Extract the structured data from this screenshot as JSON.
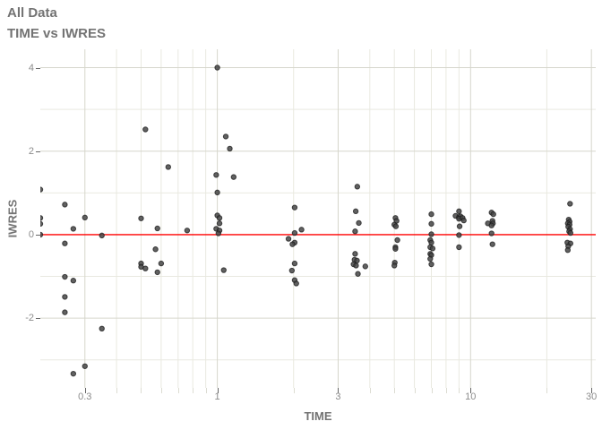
{
  "title": "All Data",
  "subtitle": "TIME vs IWRES",
  "colors": {
    "reference_line": "#FF0000",
    "point_fill": "#454545",
    "point_stroke": "#1a1a1a",
    "grid_major": "#d6d6cc",
    "grid_minor": "#e9e9e0",
    "axis_text": "#8c8c8c",
    "title_text": "#737373",
    "tick_major": "#666666",
    "tick_minor": "#dcdcd2"
  },
  "chart_data": {
    "type": "scatter",
    "title": "All Data",
    "subtitle": "TIME vs IWRES",
    "xlabel": "TIME",
    "ylabel": "IWRES",
    "x_scale": "log10",
    "grid": true,
    "legend": false,
    "xlim": [
      0.2,
      31.2
    ],
    "ylim": [
      -3.67,
      4.44
    ],
    "x_ticks": [
      0.3,
      1,
      3,
      10,
      30
    ],
    "x_tick_labels": [
      "0.3",
      "1",
      "3",
      "10",
      "30"
    ],
    "x_minor_ticks": [
      0.4,
      0.5,
      0.6,
      0.7,
      0.8,
      0.9,
      2,
      4,
      5,
      6,
      7,
      8,
      9,
      20
    ],
    "y_ticks": [
      -2,
      0,
      2,
      4
    ],
    "y_tick_labels": [
      "-2",
      "0",
      "2",
      "4"
    ],
    "y_minor_ticks": [
      -3,
      -1,
      1,
      3
    ],
    "reference_line_y": 0,
    "points": [
      [
        0.2,
        1.08
      ],
      [
        0.2,
        0.4
      ],
      [
        0.2,
        0.26
      ],
      [
        0.2,
        0.0
      ],
      [
        0.25,
        0.72
      ],
      [
        0.25,
        -0.21
      ],
      [
        0.25,
        -1.01
      ],
      [
        0.25,
        -1.49
      ],
      [
        0.25,
        -1.86
      ],
      [
        0.27,
        0.14
      ],
      [
        0.27,
        -1.1
      ],
      [
        0.27,
        -3.33
      ],
      [
        0.3,
        0.41
      ],
      [
        0.3,
        -3.15
      ],
      [
        0.35,
        -0.02
      ],
      [
        0.35,
        -2.25
      ],
      [
        0.52,
        2.52
      ],
      [
        0.5,
        0.39
      ],
      [
        0.5,
        -0.69
      ],
      [
        0.5,
        -0.77
      ],
      [
        0.52,
        -0.81
      ],
      [
        0.64,
        1.62
      ],
      [
        0.58,
        0.15
      ],
      [
        0.57,
        -0.35
      ],
      [
        0.6,
        -0.69
      ],
      [
        0.58,
        -0.9
      ],
      [
        0.76,
        0.1
      ],
      [
        1.0,
        4.0
      ],
      [
        1.08,
        2.35
      ],
      [
        1.12,
        2.06
      ],
      [
        0.99,
        1.43
      ],
      [
        1.16,
        1.38
      ],
      [
        1.0,
        1.01
      ],
      [
        1.0,
        0.46
      ],
      [
        1.02,
        0.4
      ],
      [
        1.02,
        0.27
      ],
      [
        0.99,
        0.14
      ],
      [
        1.02,
        0.1
      ],
      [
        1.01,
        0.03
      ],
      [
        1.06,
        -0.85
      ],
      [
        2.02,
        0.65
      ],
      [
        2.15,
        0.12
      ],
      [
        2.02,
        0.04
      ],
      [
        1.91,
        -0.1
      ],
      [
        2.02,
        -0.19
      ],
      [
        1.98,
        -0.23
      ],
      [
        2.02,
        -0.69
      ],
      [
        1.97,
        -0.86
      ],
      [
        2.02,
        -1.09
      ],
      [
        2.05,
        -1.17
      ],
      [
        3.57,
        1.15
      ],
      [
        3.52,
        0.56
      ],
      [
        3.62,
        0.28
      ],
      [
        3.5,
        0.08
      ],
      [
        3.5,
        -0.46
      ],
      [
        3.48,
        -0.6
      ],
      [
        3.56,
        -0.62
      ],
      [
        3.45,
        -0.71
      ],
      [
        3.53,
        -0.74
      ],
      [
        3.84,
        -0.76
      ],
      [
        3.59,
        -0.94
      ],
      [
        5.05,
        0.4
      ],
      [
        5.1,
        0.33
      ],
      [
        5.0,
        0.24
      ],
      [
        5.07,
        0.2
      ],
      [
        5.14,
        -0.13
      ],
      [
        5.05,
        -0.3
      ],
      [
        5.05,
        -0.34
      ],
      [
        5.02,
        -0.67
      ],
      [
        5.0,
        -0.74
      ],
      [
        7.0,
        0.49
      ],
      [
        7.0,
        0.26
      ],
      [
        7.0,
        0.01
      ],
      [
        6.93,
        -0.13
      ],
      [
        7.0,
        -0.19
      ],
      [
        6.93,
        -0.3
      ],
      [
        7.08,
        -0.33
      ],
      [
        6.93,
        -0.46
      ],
      [
        7.0,
        -0.49
      ],
      [
        6.93,
        -0.58
      ],
      [
        7.0,
        -0.71
      ],
      [
        9.0,
        0.56
      ],
      [
        8.72,
        0.45
      ],
      [
        9.0,
        0.42
      ],
      [
        9.12,
        0.44
      ],
      [
        9.0,
        0.38
      ],
      [
        9.3,
        0.4
      ],
      [
        9.4,
        0.34
      ],
      [
        9.05,
        0.2
      ],
      [
        9.0,
        -0.01
      ],
      [
        9.0,
        -0.3
      ],
      [
        12.1,
        0.53
      ],
      [
        12.3,
        0.49
      ],
      [
        11.7,
        0.27
      ],
      [
        12.2,
        0.33
      ],
      [
        12.25,
        0.27
      ],
      [
        12.1,
        0.22
      ],
      [
        12.1,
        0.03
      ],
      [
        12.2,
        -0.23
      ],
      [
        24.7,
        0.74
      ],
      [
        24.4,
        0.36
      ],
      [
        24.6,
        0.31
      ],
      [
        24.2,
        0.27
      ],
      [
        24.6,
        0.24
      ],
      [
        24.3,
        0.19
      ],
      [
        24.7,
        0.13
      ],
      [
        24.5,
        0.08
      ],
      [
        24.8,
        0.04
      ],
      [
        24.1,
        -0.19
      ],
      [
        24.8,
        -0.21
      ],
      [
        24.3,
        -0.28
      ],
      [
        24.2,
        -0.37
      ]
    ]
  }
}
